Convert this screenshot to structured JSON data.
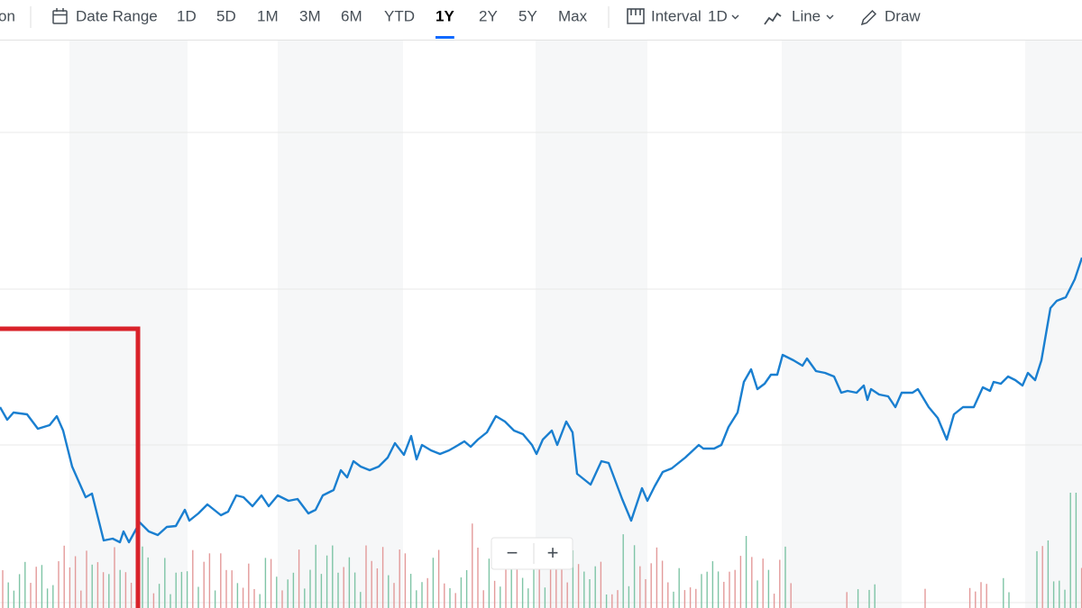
{
  "toolbar": {
    "truncated": "on",
    "date_range": "Date Range",
    "ranges": [
      "1D",
      "5D",
      "1M",
      "3M",
      "6M",
      "YTD",
      "1Y",
      "2Y",
      "5Y",
      "Max"
    ],
    "selected": "1Y",
    "interval": {
      "label": "Interval",
      "value": "1D"
    },
    "chart_type": "Line",
    "draw": "Draw"
  },
  "zoom": {
    "out": "−",
    "in": "+"
  }
}
